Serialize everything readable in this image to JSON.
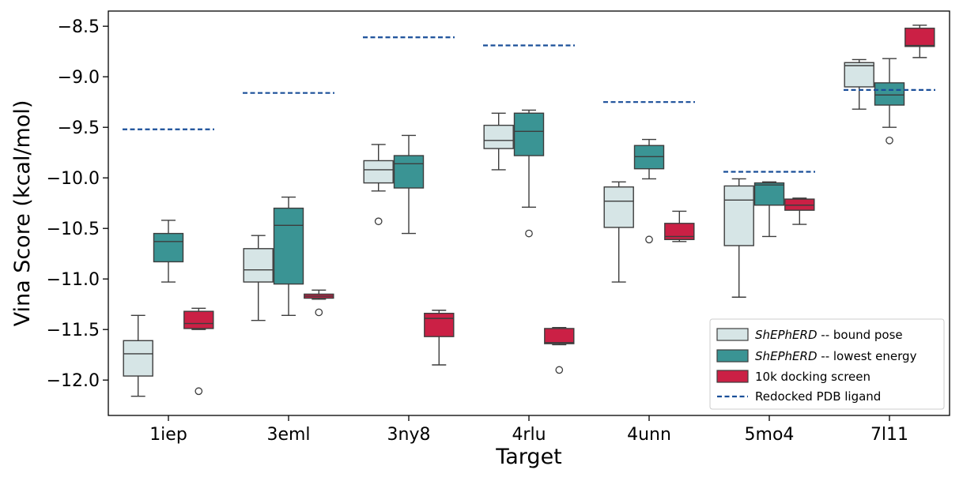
{
  "chart_data": {
    "type": "box",
    "title": "",
    "xlabel": "Target",
    "ylabel": "Vina Score (kcal/mol)",
    "ylim": [
      -12.35,
      -8.35
    ],
    "yticks": [
      -8.5,
      -9.0,
      -9.5,
      -10.0,
      -10.5,
      -11.0,
      -11.5,
      -12.0
    ],
    "ytick_labels": [
      "−8.5",
      "−9.0",
      "−9.5",
      "−10.0",
      "−10.5",
      "−11.0",
      "−11.5",
      "−12.0"
    ],
    "categories": [
      "1iep",
      "3eml",
      "3ny8",
      "4rlu",
      "4unn",
      "5mo4",
      "7l11"
    ],
    "series": [
      {
        "name": "ShEPhERD -- bound pose",
        "name_italic": "ShEPhERD",
        "name_rest": " -- bound pose",
        "color": "#d6e5e6",
        "boxes": [
          {
            "whislo": -12.16,
            "q1": -11.96,
            "med": -11.74,
            "q3": -11.61,
            "whishi": -11.36,
            "fliers": []
          },
          {
            "whislo": -11.41,
            "q1": -11.03,
            "med": -10.91,
            "q3": -10.7,
            "whishi": -10.57,
            "fliers": []
          },
          {
            "whislo": -10.13,
            "q1": -10.05,
            "med": -9.92,
            "q3": -9.83,
            "whishi": -9.67,
            "fliers": [
              -10.43
            ]
          },
          {
            "whislo": -9.92,
            "q1": -9.71,
            "med": -9.63,
            "q3": -9.48,
            "whishi": -9.36,
            "fliers": []
          },
          {
            "whislo": -11.03,
            "q1": -10.49,
            "med": -10.23,
            "q3": -10.09,
            "whishi": -10.04,
            "fliers": []
          },
          {
            "whislo": -11.18,
            "q1": -10.67,
            "med": -10.22,
            "q3": -10.08,
            "whishi": -10.01,
            "fliers": []
          },
          {
            "whislo": -9.32,
            "q1": -9.1,
            "med": -8.89,
            "q3": -8.86,
            "whishi": -8.83,
            "fliers": []
          }
        ]
      },
      {
        "name": "ShEPhERD -- lowest energy",
        "name_italic": "ShEPhERD",
        "name_rest": " -- lowest energy",
        "color": "#3a9494",
        "boxes": [
          {
            "whislo": -11.03,
            "q1": -10.83,
            "med": -10.63,
            "q3": -10.55,
            "whishi": -10.42,
            "fliers": []
          },
          {
            "whislo": -11.36,
            "q1": -11.05,
            "med": -10.47,
            "q3": -10.3,
            "whishi": -10.19,
            "fliers": []
          },
          {
            "whislo": -10.55,
            "q1": -10.1,
            "med": -9.86,
            "q3": -9.78,
            "whishi": -9.58,
            "fliers": []
          },
          {
            "whislo": -10.29,
            "q1": -9.78,
            "med": -9.54,
            "q3": -9.36,
            "whishi": -9.33,
            "fliers": [
              -10.55
            ]
          },
          {
            "whislo": -10.01,
            "q1": -9.91,
            "med": -9.79,
            "q3": -9.68,
            "whishi": -9.62,
            "fliers": [
              -10.61
            ]
          },
          {
            "whislo": -10.58,
            "q1": -10.27,
            "med": -10.07,
            "q3": -10.05,
            "whishi": -10.04,
            "fliers": []
          },
          {
            "whislo": -9.5,
            "q1": -9.28,
            "med": -9.18,
            "q3": -9.06,
            "whishi": -8.82,
            "fliers": [
              -9.63
            ]
          }
        ]
      },
      {
        "name": "10k docking screen",
        "name_italic": "",
        "name_rest": "10k docking screen",
        "color": "#cb2045",
        "boxes": [
          {
            "whislo": -11.5,
            "q1": -11.49,
            "med": -11.44,
            "q3": -11.32,
            "whishi": -11.29,
            "fliers": [
              -12.11
            ]
          },
          {
            "whislo": -11.2,
            "q1": -11.19,
            "med": -11.17,
            "q3": -11.15,
            "whishi": -11.11,
            "fliers": [
              -11.33
            ]
          },
          {
            "whislo": -11.85,
            "q1": -11.57,
            "med": -11.39,
            "q3": -11.34,
            "whishi": -11.31,
            "fliers": []
          },
          {
            "whislo": -11.65,
            "q1": -11.64,
            "med": -11.63,
            "q3": -11.49,
            "whishi": -11.48,
            "fliers": [
              -11.9
            ]
          },
          {
            "whislo": -10.63,
            "q1": -10.61,
            "med": -10.58,
            "q3": -10.45,
            "whishi": -10.33,
            "fliers": []
          },
          {
            "whislo": -10.46,
            "q1": -10.32,
            "med": -10.27,
            "q3": -10.21,
            "whishi": -10.2,
            "fliers": []
          },
          {
            "whislo": -8.81,
            "q1": -8.7,
            "med": -8.69,
            "q3": -8.52,
            "whishi": -8.49,
            "fliers": []
          }
        ]
      }
    ],
    "reference_line": {
      "name": "Redocked PDB ligand",
      "color": "#1a4f99",
      "values": [
        -9.52,
        -9.16,
        -8.61,
        -8.69,
        -9.25,
        -9.94,
        -9.13
      ]
    },
    "legend_position": "bottom-right",
    "grid": false
  }
}
